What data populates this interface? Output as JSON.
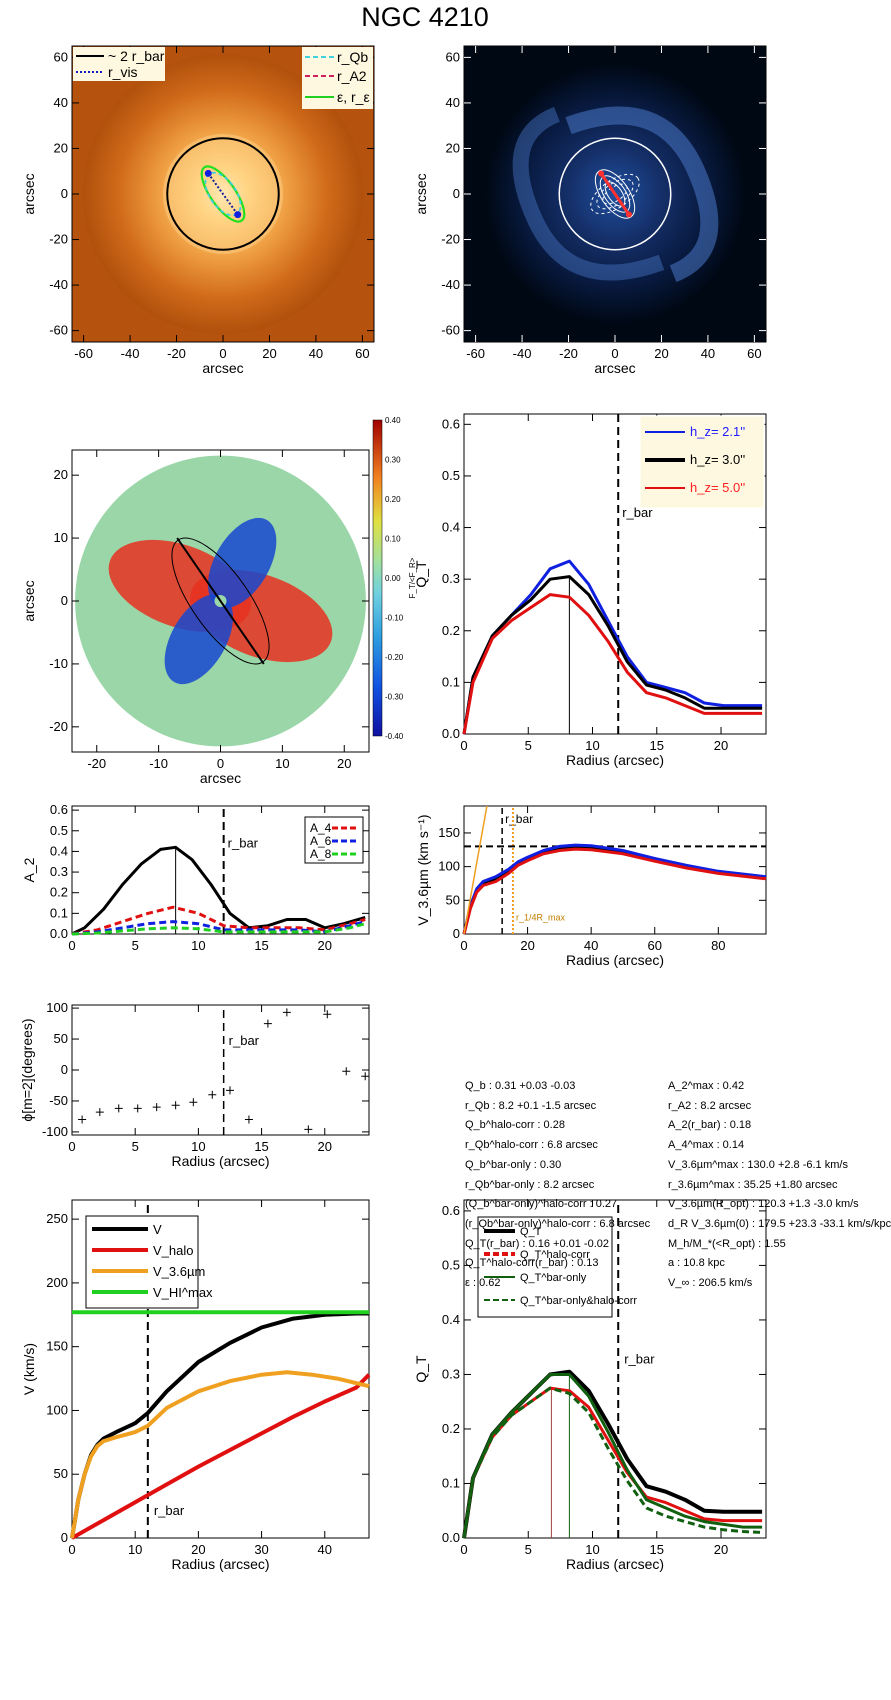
{
  "title": "NGC 4210",
  "colors": {
    "black": "#000000",
    "blue": "#1020e0",
    "red": "#e01010",
    "orange": "#f0a020",
    "green": "#20d020",
    "darkgreen": "#106010",
    "cyan": "#40d0e0",
    "magenta": "#d02060",
    "hz_blue": "#2020ff",
    "hz_red": "#ff2020"
  },
  "stats_left": [
    "Q_b :  0.31 +0.03 -0.03",
    "r_Qb :  8.2 +0.1 -1.5 arcsec",
    "Q_b^halo-corr :  0.28",
    "r_Qb^halo-corr :  6.8 arcsec",
    "Q_b^bar-only :  0.30",
    "r_Qb^bar-only :  8.2 arcsec",
    "(Q_b^bar-only)^halo-corr :  0.27",
    "(r_Qb^bar-only)^halo-corr :  6.8 arcsec",
    "Q_T(r_bar) :  0.16 +0.01 -0.02",
    "Q_T^halo-corr(r_bar) :  0.13",
    "ε :  0.62"
  ],
  "stats_right": [
    "A_2^max :  0.42",
    "r_A2 :  8.2 arcsec",
    "A_2(r_bar) :  0.18",
    "A_4^max :  0.14",
    "V_3.6µm^max :  130.0 +2.8 -6.1 km/s",
    "r_3.6µm^max :  35.25 +1.80 arcsec",
    "V_3.6µm(R_opt) :  120.3 +1.3 -3.0 km/s",
    "d_R V_3.6µm(0) :  179.5 +23.3 -33.1 km/s/kpc",
    "M_h/M_*(<R_opt) :  1.55",
    "a :  10.8 kpc",
    "V_∞ :  206.5 km/s"
  ],
  "chart_data": [
    {
      "id": "image-galaxy",
      "type": "heatmap",
      "xlabel": "arcsec",
      "ylabel": "arcsec",
      "xlim": [
        -65,
        65
      ],
      "ylim": [
        -65,
        65
      ],
      "xticks": [
        -60,
        -40,
        -20,
        0,
        20,
        40,
        60
      ],
      "yticks": [
        -60,
        -40,
        -20,
        0,
        20,
        40,
        60
      ],
      "legend_left": [
        "~ 2 r_bar",
        "r_vis"
      ],
      "legend_right": [
        "r_Qb",
        "r_A2",
        "ε, r_ε"
      ],
      "circle_radius": 24,
      "bar_pa_deg": -55,
      "bar_half_length": 13
    },
    {
      "id": "image-residual",
      "type": "heatmap",
      "xlabel": "arcsec",
      "ylabel": "arcsec",
      "xlim": [
        -65,
        65
      ],
      "ylim": [
        -65,
        65
      ],
      "xticks": [
        -60,
        -40,
        -20,
        0,
        20,
        40,
        60
      ],
      "yticks": [
        -60,
        -40,
        -20,
        0,
        20,
        40,
        60
      ],
      "circle_radius": 24
    },
    {
      "id": "force-map",
      "type": "heatmap",
      "xlabel": "arcsec",
      "ylabel": "arcsec",
      "xlim": [
        -24,
        24
      ],
      "ylim": [
        -24,
        24
      ],
      "xticks": [
        -20,
        -10,
        0,
        10,
        20
      ],
      "yticks": [
        -20,
        -10,
        0,
        10,
        20
      ],
      "colorbar_label": "F_T/<F_R>",
      "colorbar_ticks": [
        "0.40",
        "0.30",
        "0.20",
        "0.10",
        "0.00",
        "-0.10",
        "-0.20",
        "-0.30",
        "-0.40"
      ],
      "colorbar_range": [
        -0.4,
        0.4
      ]
    },
    {
      "id": "qt-hz",
      "type": "line",
      "xlabel": "Radius (arcsec)",
      "ylabel": "Q_T",
      "xlim": [
        0,
        23.5
      ],
      "ylim": [
        0,
        0.62
      ],
      "xticks": [
        0,
        5,
        10,
        15,
        20
      ],
      "yticks": [
        0.0,
        0.1,
        0.2,
        0.3,
        0.4,
        0.5,
        0.6
      ],
      "rbar": 12,
      "rbar_label": "r_bar",
      "r_qb": 8.2,
      "x": [
        0,
        0.7,
        2.2,
        3.7,
        5.2,
        6.7,
        8.2,
        9.7,
        11.2,
        12.7,
        14.2,
        15.7,
        17.2,
        18.7,
        20.2,
        21.7,
        23.2
      ],
      "legend": [
        "h_z=  2.1''",
        "h_z=  3.0''",
        "h_z=  5.0''"
      ],
      "series": [
        {
          "name": "h_z=  2.1''",
          "color": "blue",
          "values": [
            0,
            0.11,
            0.19,
            0.23,
            0.27,
            0.32,
            0.335,
            0.29,
            0.22,
            0.15,
            0.1,
            0.09,
            0.08,
            0.06,
            0.055,
            0.055,
            0.055
          ]
        },
        {
          "name": "h_z=  3.0''",
          "color": "black",
          "values": [
            0,
            0.11,
            0.19,
            0.23,
            0.26,
            0.3,
            0.305,
            0.27,
            0.21,
            0.14,
            0.095,
            0.085,
            0.07,
            0.05,
            0.05,
            0.05,
            0.05
          ]
        },
        {
          "name": "h_z=  5.0''",
          "color": "red",
          "values": [
            0,
            0.1,
            0.185,
            0.22,
            0.245,
            0.27,
            0.265,
            0.23,
            0.18,
            0.12,
            0.08,
            0.07,
            0.055,
            0.04,
            0.04,
            0.04,
            0.04
          ]
        }
      ]
    },
    {
      "id": "a2-profile",
      "type": "line",
      "xlabel": "",
      "ylabel": "A_2",
      "xlim": [
        0,
        23.5
      ],
      "ylim": [
        0,
        0.62
      ],
      "xticks": [
        0,
        5,
        10,
        15,
        20
      ],
      "yticks": [
        0.0,
        0.1,
        0.2,
        0.3,
        0.4,
        0.5,
        0.6
      ],
      "rbar": 12,
      "rbar_label": "r_bar",
      "r_a2": 8.2,
      "legend": [
        "A_4",
        "A_6",
        "A_8"
      ],
      "series": [
        {
          "name": "A_2",
          "color": "black",
          "x": [
            0,
            1,
            2.5,
            4,
            5.5,
            7,
            8.2,
            9.5,
            11,
            12.5,
            14,
            15.5,
            17,
            18.5,
            20,
            21.5,
            23.2
          ],
          "values": [
            0,
            0.03,
            0.12,
            0.24,
            0.34,
            0.41,
            0.42,
            0.36,
            0.24,
            0.1,
            0.03,
            0.04,
            0.07,
            0.07,
            0.03,
            0.05,
            0.08
          ]
        },
        {
          "name": "A_4",
          "color": "red",
          "x": [
            0,
            2,
            4,
            6,
            8,
            10,
            12,
            14,
            16,
            18,
            20,
            22,
            23.2
          ],
          "values": [
            0,
            0.02,
            0.06,
            0.1,
            0.13,
            0.1,
            0.04,
            0.03,
            0.03,
            0.03,
            0.02,
            0.05,
            0.07
          ]
        },
        {
          "name": "A_6",
          "color": "blue",
          "x": [
            0,
            2,
            4,
            6,
            8,
            10,
            12,
            14,
            16,
            18,
            20,
            22,
            23.2
          ],
          "values": [
            0,
            0.01,
            0.03,
            0.05,
            0.06,
            0.05,
            0.02,
            0.02,
            0.02,
            0.02,
            0.01,
            0.04,
            0.06
          ]
        },
        {
          "name": "A_8",
          "color": "green",
          "x": [
            0,
            2,
            4,
            6,
            8,
            10,
            12,
            14,
            16,
            18,
            20,
            22,
            23.2
          ],
          "values": [
            0,
            0.005,
            0.015,
            0.025,
            0.03,
            0.025,
            0.01,
            0.01,
            0.01,
            0.01,
            0.01,
            0.03,
            0.05
          ]
        }
      ]
    },
    {
      "id": "v36-profile",
      "type": "line",
      "xlabel": "Radius (arcsec)",
      "ylabel": "V_3.6µm (km s⁻¹)",
      "xlim": [
        0,
        95
      ],
      "ylim": [
        0,
        190
      ],
      "xticks": [
        0,
        20,
        40,
        60,
        80
      ],
      "yticks": [
        0,
        50,
        100,
        150
      ],
      "rbar": 12,
      "rbar_label": "r_bar",
      "r_hr": 15.4,
      "r_hr_label": "r_1/4R_max",
      "vmax_line": 130,
      "series": [
        {
          "name": "black",
          "color": "black",
          "x": [
            0,
            2,
            4,
            6,
            10,
            14,
            17,
            20,
            25,
            30,
            35,
            40,
            50,
            60,
            70,
            80,
            95
          ],
          "values": [
            0,
            40,
            65,
            76,
            82,
            93,
            105,
            112,
            122,
            128,
            130,
            129,
            122,
            110,
            100,
            92,
            84
          ]
        },
        {
          "name": "blue",
          "color": "blue",
          "x": [
            0,
            2,
            4,
            6,
            10,
            14,
            17,
            20,
            25,
            30,
            35,
            40,
            50,
            60,
            70,
            80,
            95
          ],
          "values": [
            0,
            42,
            67,
            78,
            85,
            96,
            107,
            114,
            124,
            130,
            132,
            131,
            124,
            112,
            102,
            93,
            85
          ]
        },
        {
          "name": "red",
          "color": "red",
          "x": [
            0,
            2,
            4,
            6,
            10,
            14,
            17,
            20,
            25,
            30,
            35,
            40,
            50,
            60,
            70,
            80,
            95
          ],
          "values": [
            0,
            38,
            62,
            72,
            78,
            90,
            102,
            109,
            119,
            124,
            126,
            125,
            119,
            108,
            98,
            90,
            82
          ]
        },
        {
          "name": "slope",
          "color": "orange",
          "x": [
            0,
            8
          ],
          "values": [
            0,
            200
          ]
        }
      ]
    },
    {
      "id": "phase-profile",
      "type": "scatter",
      "xlabel": "Radius (arcsec)",
      "ylabel": "ϕ[m=2](degrees)",
      "xlim": [
        0,
        23.5
      ],
      "ylim": [
        -105,
        105
      ],
      "xticks": [
        0,
        5,
        10,
        15,
        20
      ],
      "yticks": [
        -100,
        -50,
        0,
        50,
        100
      ],
      "rbar": 12,
      "rbar_label": "r_bar",
      "x": [
        0.8,
        2.2,
        3.7,
        5.2,
        6.7,
        8.2,
        9.6,
        11.1,
        12.5,
        14,
        15.5,
        17,
        18.7,
        20.2,
        21.7,
        23.2
      ],
      "values": [
        -80,
        -68,
        -62,
        -62,
        -60,
        -57,
        -52,
        -40,
        -33,
        -80,
        75,
        93,
        -96,
        90,
        -2,
        -10
      ]
    },
    {
      "id": "rotation-curve",
      "type": "line",
      "xlabel": "Radius (arcsec)",
      "ylabel": "V (km/s)",
      "xlim": [
        0,
        47
      ],
      "ylim": [
        0,
        265
      ],
      "xticks": [
        0,
        10,
        20,
        30,
        40
      ],
      "yticks": [
        0,
        50,
        100,
        150,
        200,
        250
      ],
      "rbar": 12,
      "rbar_label": "r_bar",
      "legend": [
        "V",
        "V_halo",
        "V_3.6µm",
        "V_HI^max"
      ],
      "series": [
        {
          "name": "V",
          "color": "black",
          "x": [
            0,
            1,
            2,
            3,
            4,
            5,
            7,
            10,
            12,
            15,
            20,
            25,
            30,
            35,
            40,
            45,
            47
          ],
          "values": [
            0,
            30,
            50,
            65,
            73,
            78,
            83,
            90,
            98,
            115,
            138,
            153,
            165,
            172,
            175,
            176,
            176
          ]
        },
        {
          "name": "V_halo",
          "color": "red",
          "x": [
            0,
            5,
            10,
            15,
            20,
            25,
            30,
            35,
            40,
            45,
            47
          ],
          "values": [
            0,
            14,
            28,
            42,
            56,
            69,
            82,
            95,
            107,
            118,
            128
          ]
        },
        {
          "name": "V_3.6µm",
          "color": "orange",
          "x": [
            0,
            1,
            2,
            3,
            4,
            5,
            7,
            10,
            12,
            15,
            20,
            25,
            30,
            34,
            38,
            42,
            47
          ],
          "values": [
            0,
            30,
            50,
            64,
            72,
            76,
            79,
            83,
            88,
            102,
            115,
            123,
            128,
            130,
            128,
            125,
            119
          ]
        },
        {
          "name": "V_HI^max",
          "color": "green",
          "x": [
            0,
            47
          ],
          "values": [
            177,
            177
          ]
        }
      ]
    },
    {
      "id": "qt-corrections",
      "type": "line",
      "xlabel": "Radius (arcsec)",
      "ylabel": "Q_T",
      "xlim": [
        0,
        23.5
      ],
      "ylim": [
        0,
        0.62
      ],
      "xticks": [
        0,
        5,
        10,
        15,
        20
      ],
      "yticks": [
        0.0,
        0.1,
        0.2,
        0.3,
        0.4,
        0.5,
        0.6
      ],
      "rbar": 12,
      "rbar_label": "r_bar",
      "r_qb": 8.2,
      "r_qb_corr": 6.8,
      "x": [
        0,
        0.7,
        2.2,
        3.7,
        5.2,
        6.7,
        8.2,
        9.7,
        11.2,
        12.7,
        14.2,
        15.7,
        17.2,
        18.7,
        20.2,
        21.7,
        23.2
      ],
      "legend": [
        "Q_T",
        "Q_T^halo-corr",
        "Q_T^bar-only",
        "Q_T^bar-only&halo-corr"
      ],
      "series": [
        {
          "name": "Q_T",
          "color": "black",
          "values": [
            0,
            0.11,
            0.19,
            0.23,
            0.265,
            0.3,
            0.305,
            0.27,
            0.21,
            0.145,
            0.095,
            0.085,
            0.07,
            0.05,
            0.048,
            0.048,
            0.048
          ]
        },
        {
          "name": "Q_T^halo-corr",
          "color": "red",
          "values": [
            0,
            0.11,
            0.185,
            0.225,
            0.25,
            0.275,
            0.27,
            0.24,
            0.18,
            0.12,
            0.075,
            0.065,
            0.05,
            0.035,
            0.032,
            0.032,
            0.032
          ]
        },
        {
          "name": "Q_T^bar-only",
          "color": "darkgreen",
          "values": [
            0,
            0.11,
            0.19,
            0.23,
            0.265,
            0.3,
            0.3,
            0.26,
            0.195,
            0.125,
            0.07,
            0.055,
            0.04,
            0.03,
            0.025,
            0.02,
            0.02
          ]
        },
        {
          "name": "Q_T^bar-only&halo-corr",
          "color": "darkgreen",
          "dash": true,
          "values": [
            0,
            0.11,
            0.185,
            0.225,
            0.25,
            0.275,
            0.265,
            0.23,
            0.165,
            0.105,
            0.055,
            0.04,
            0.03,
            0.02,
            0.015,
            0.012,
            0.01
          ]
        }
      ]
    }
  ]
}
